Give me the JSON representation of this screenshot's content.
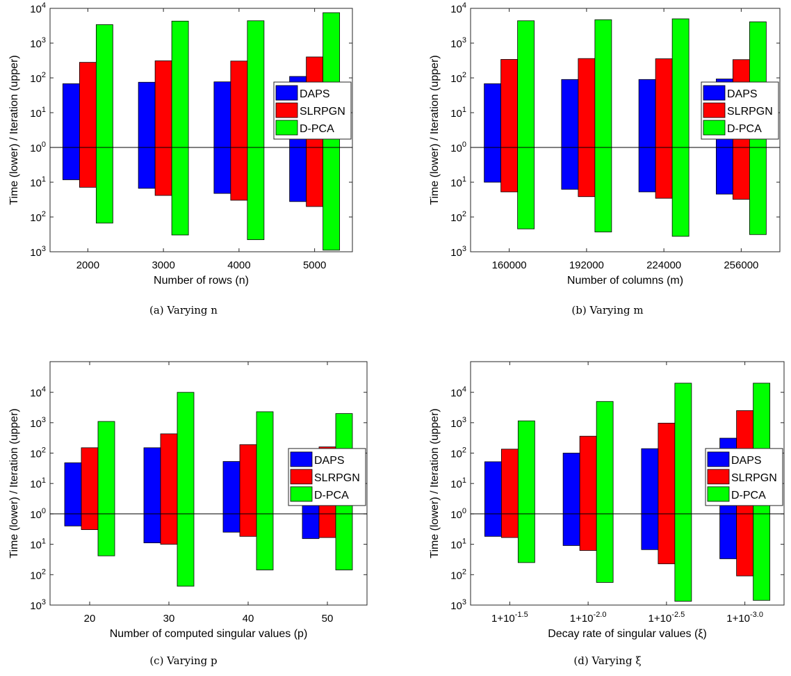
{
  "colors": {
    "DAPS": "#0000ff",
    "SLRPGN": "#ff0000",
    "D-PCA": "#00ff00",
    "refline": "#000000"
  },
  "chart_data": [
    {
      "type": "bar",
      "caption": "(a) Varying n",
      "xlabel": "Number of rows (n)",
      "ylabel": "Time (lower) / Iteration (upper)",
      "categories": [
        "2000",
        "3000",
        "4000",
        "5000"
      ],
      "legend": {
        "entries": [
          "DAPS",
          "SLRPGN",
          "D-PCA"
        ],
        "placement": "right"
      },
      "yscale": "symmetric-log",
      "ylim": [
        -1000,
        10000
      ],
      "ytick_labels": [
        "10^3",
        "10^2",
        "10^1",
        "10^0",
        "10^1",
        "10^2",
        "10^3",
        "10^4"
      ],
      "series": [
        {
          "name": "DAPS",
          "upper": [
            68,
            75,
            77,
            110
          ],
          "lower": [
            8.5,
            15,
            21,
            36
          ]
        },
        {
          "name": "SLRPGN",
          "upper": [
            280,
            310,
            305,
            400
          ],
          "lower": [
            14,
            24,
            33,
            50
          ]
        },
        {
          "name": "D-PCA",
          "upper": [
            3400,
            4300,
            4400,
            7500
          ],
          "lower": [
            150,
            330,
            450,
            900
          ]
        }
      ]
    },
    {
      "type": "bar",
      "caption": "(b) Varying m",
      "xlabel": "Number of columns (m)",
      "ylabel": "Time (lower) / Iteration (upper)",
      "categories": [
        "160000",
        "192000",
        "224000",
        "256000"
      ],
      "legend": {
        "entries": [
          "DAPS",
          "SLRPGN",
          "D-PCA"
        ],
        "placement": "right"
      },
      "yscale": "symmetric-log",
      "ylim": [
        -1000,
        10000
      ],
      "ytick_labels": [
        "10^3",
        "10^2",
        "10^1",
        "10^0",
        "10^1",
        "10^2",
        "10^3",
        "10^4"
      ],
      "series": [
        {
          "name": "DAPS",
          "upper": [
            68,
            90,
            90,
            93
          ],
          "lower": [
            10,
            16,
            19,
            22
          ]
        },
        {
          "name": "SLRPGN",
          "upper": [
            340,
            360,
            355,
            335
          ],
          "lower": [
            19,
            26,
            29,
            31
          ]
        },
        {
          "name": "D-PCA",
          "upper": [
            4400,
            4700,
            5000,
            4100
          ],
          "lower": [
            220,
            270,
            360,
            320
          ]
        }
      ]
    },
    {
      "type": "bar",
      "caption": "(c) Varying p",
      "xlabel": "Number of computed singular values (p)",
      "ylabel": "Time (lower) / Iteration (upper)",
      "categories": [
        "20",
        "30",
        "40",
        "50"
      ],
      "legend": {
        "entries": [
          "DAPS",
          "SLRPGN",
          "D-PCA"
        ],
        "placement": "right"
      },
      "yscale": "symmetric-log",
      "ylim": [
        -1000,
        100000
      ],
      "ytick_labels": [
        "10^3",
        "10^2",
        "10^1",
        "10^0",
        "10^1",
        "10^2",
        "10^3",
        "10^4"
      ],
      "series": [
        {
          "name": "DAPS",
          "upper": [
            48,
            150,
            53,
            68
          ],
          "lower": [
            2.5,
            9,
            4,
            6.5
          ]
        },
        {
          "name": "SLRPGN",
          "upper": [
            150,
            430,
            190,
            160
          ],
          "lower": [
            3.3,
            10,
            5.5,
            6
          ]
        },
        {
          "name": "D-PCA",
          "upper": [
            1100,
            10000,
            2300,
            2000
          ],
          "lower": [
            24,
            240,
            70,
            70
          ]
        }
      ]
    },
    {
      "type": "bar",
      "caption": "(d) Varying ξ",
      "xlabel": "Decay rate of singular values (ξ)",
      "ylabel": "Time (lower) / Iteration (upper)",
      "categories": [
        "1+10^-1.5",
        "1+10^-2.0",
        "1+10^-2.5",
        "1+10^-3.0"
      ],
      "legend": {
        "entries": [
          "DAPS",
          "SLRPGN",
          "D-PCA"
        ],
        "placement": "right"
      },
      "yscale": "symmetric-log",
      "ylim": [
        -1000,
        100000
      ],
      "ytick_labels": [
        "10^3",
        "10^2",
        "10^1",
        "10^0",
        "10^1",
        "10^2",
        "10^3",
        "10^4"
      ],
      "series": [
        {
          "name": "DAPS",
          "upper": [
            52,
            100,
            140,
            310
          ],
          "lower": [
            5.5,
            11,
            15,
            30
          ]
        },
        {
          "name": "SLRPGN",
          "upper": [
            135,
            360,
            970,
            2500
          ],
          "lower": [
            6,
            16,
            44,
            110
          ]
        },
        {
          "name": "D-PCA",
          "upper": [
            1150,
            5000,
            20000,
            20000
          ],
          "lower": [
            40,
            180,
            750,
            700
          ]
        }
      ]
    }
  ]
}
